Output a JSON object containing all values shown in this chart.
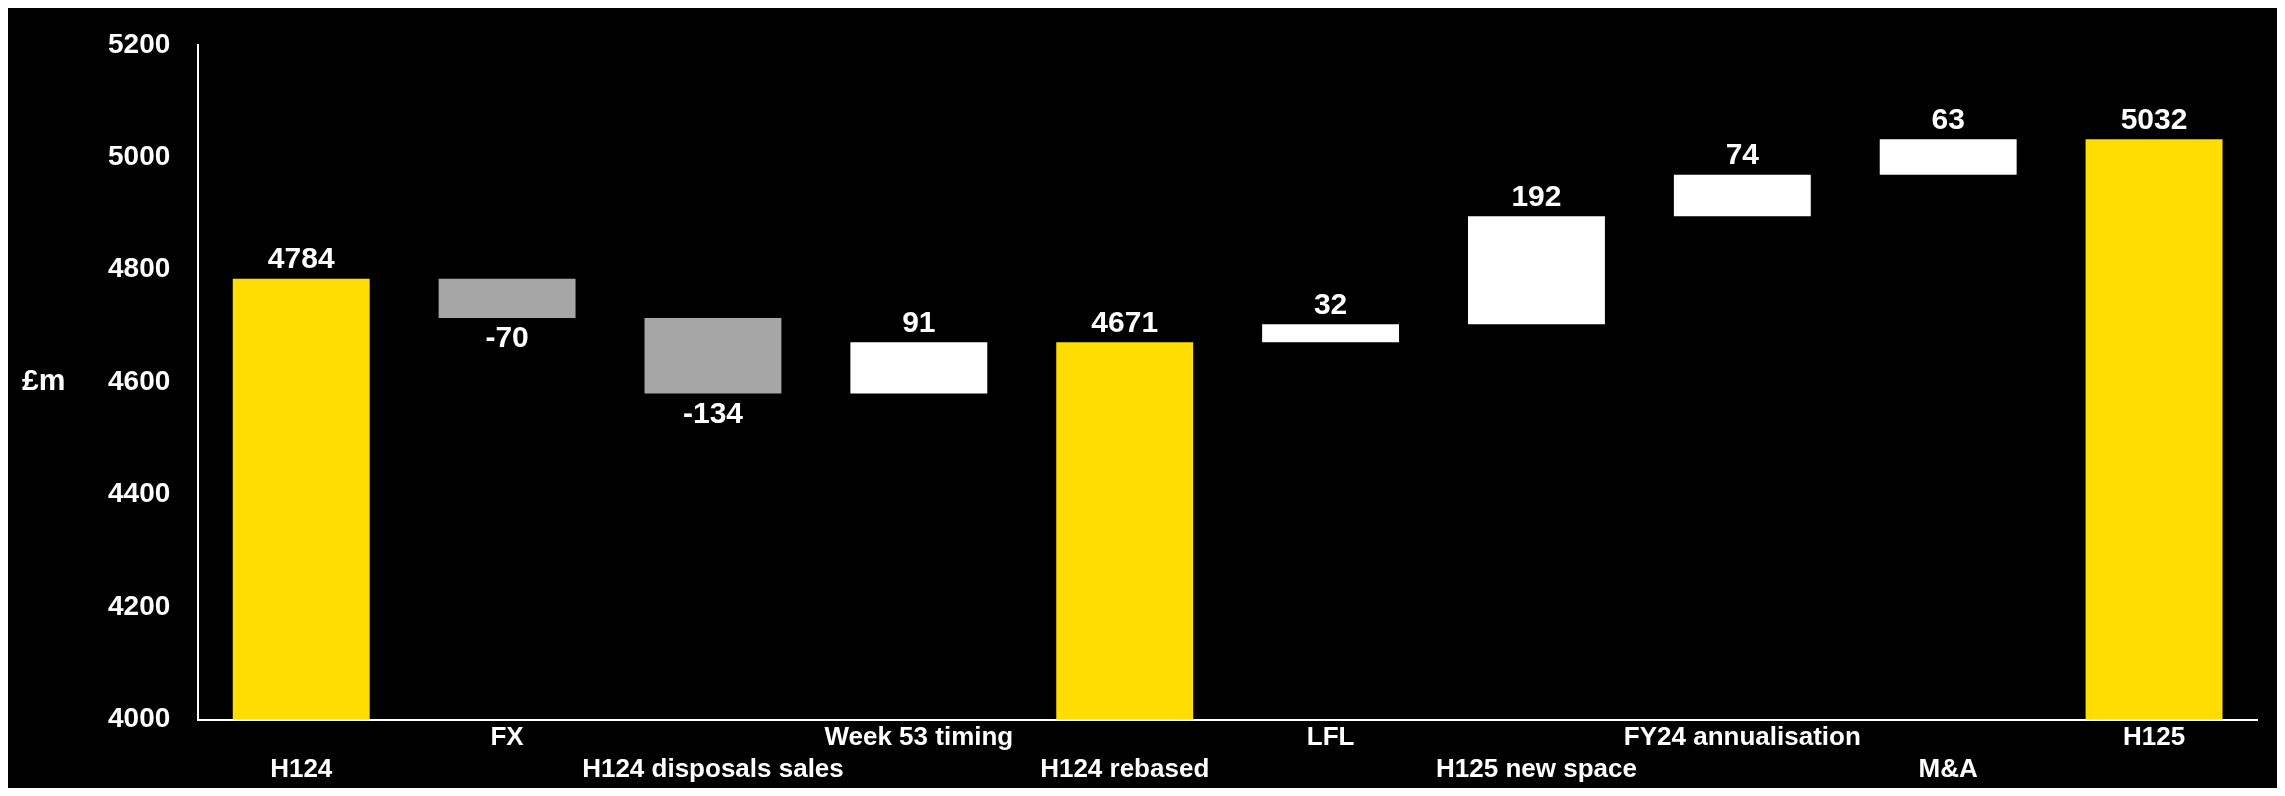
{
  "chart_data": {
    "type": "bar",
    "ylabel": "£m",
    "categories": [
      "H124",
      "FX",
      "H124 disposals sales",
      "Week 53 timing",
      "H124 rebased",
      "LFL",
      "H125 new space",
      "FY24 annualisation",
      "M&A",
      "H125"
    ],
    "values": [
      4784,
      -70,
      -134,
      91,
      4671,
      32,
      192,
      74,
      63,
      5032
    ],
    "base": [
      null,
      4784,
      4714,
      4580,
      null,
      4671,
      4703,
      4895,
      4969,
      null
    ],
    "colors": [
      "#ffdd00",
      "#a6a6a6",
      "#a6a6a6",
      "#ffffff",
      "#ffdd00",
      "#ffffff",
      "#ffffff",
      "#ffffff",
      "#ffffff",
      "#ffdd00"
    ],
    "ylim": [
      4000,
      5200
    ],
    "yticks": [
      4000,
      4200,
      4400,
      4600,
      4800,
      5000,
      5200
    ],
    "data_labels": true,
    "grid": false,
    "legend": false
  }
}
